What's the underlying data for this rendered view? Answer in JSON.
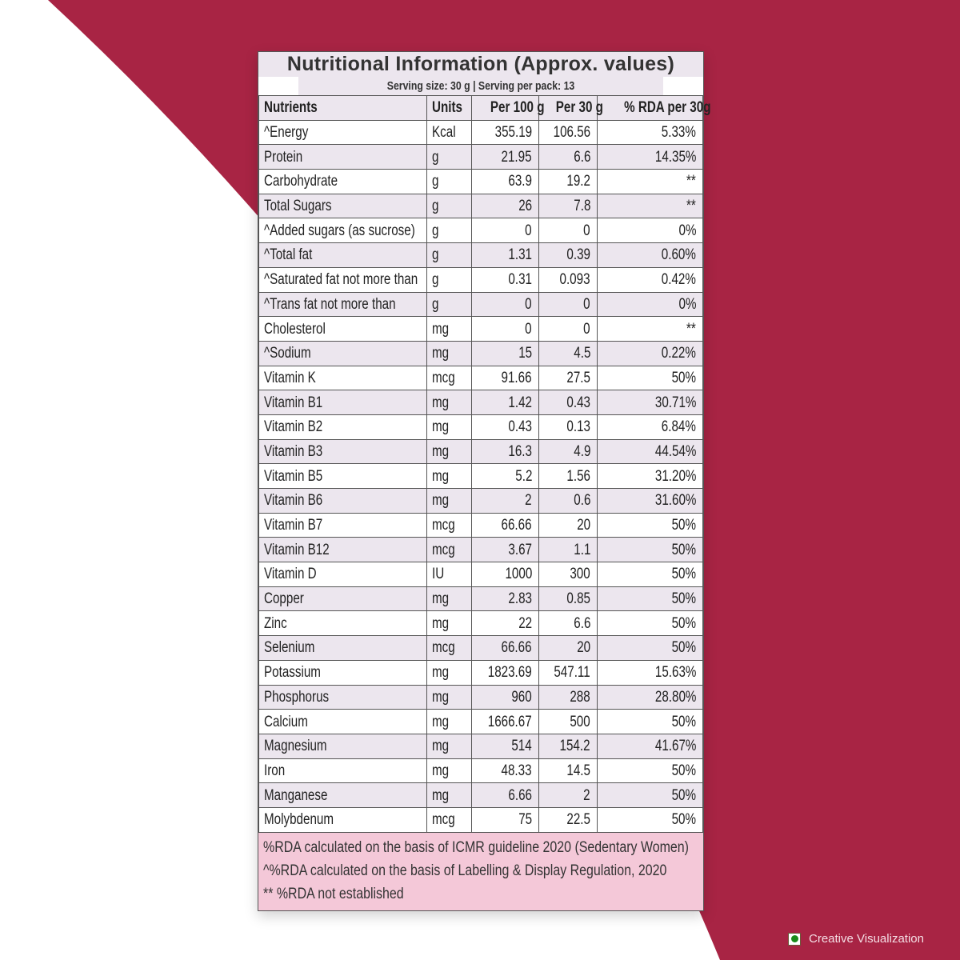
{
  "label": {
    "title": "Nutritional Information (Approx. values)",
    "serving": "Serving size: 30 g   |   Serving per pack: 13",
    "columns": [
      "Nutrients",
      "Units",
      "Per 100 g",
      "Per 30 g",
      "% RDA per 30g"
    ],
    "rows": [
      [
        "^Energy",
        "Kcal",
        "355.19",
        "106.56",
        "5.33%"
      ],
      [
        "Protein",
        "g",
        "21.95",
        "6.6",
        "14.35%"
      ],
      [
        "Carbohydrate",
        "g",
        "63.9",
        "19.2",
        "**"
      ],
      [
        "Total Sugars",
        "g",
        "26",
        "7.8",
        "**"
      ],
      [
        "^Added sugars (as sucrose)",
        "g",
        "0",
        "0",
        "0%"
      ],
      [
        "^Total fat",
        "g",
        "1.31",
        "0.39",
        "0.60%"
      ],
      [
        "^Saturated fat not more than",
        "g",
        "0.31",
        "0.093",
        "0.42%"
      ],
      [
        "^Trans fat not more than",
        "g",
        "0",
        "0",
        "0%"
      ],
      [
        "Cholesterol",
        "mg",
        "0",
        "0",
        "**"
      ],
      [
        "^Sodium",
        "mg",
        "15",
        "4.5",
        "0.22%"
      ],
      [
        "Vitamin K",
        "mcg",
        "91.66",
        "27.5",
        "50%"
      ],
      [
        "Vitamin B1",
        "mg",
        "1.42",
        "0.43",
        "30.71%"
      ],
      [
        "Vitamin B2",
        "mg",
        "0.43",
        "0.13",
        "6.84%"
      ],
      [
        "Vitamin B3",
        "mg",
        "16.3",
        "4.9",
        "44.54%"
      ],
      [
        "Vitamin B5",
        "mg",
        "5.2",
        "1.56",
        "31.20%"
      ],
      [
        "Vitamin B6",
        "mg",
        "2",
        "0.6",
        "31.60%"
      ],
      [
        "Vitamin B7",
        "mcg",
        "66.66",
        "20",
        "50%"
      ],
      [
        "Vitamin B12",
        "mcg",
        "3.67",
        "1.1",
        "50%"
      ],
      [
        "Vitamin D",
        "IU",
        "1000",
        "300",
        "50%"
      ],
      [
        "Copper",
        "mg",
        "2.83",
        "0.85",
        "50%"
      ],
      [
        "Zinc",
        "mg",
        "22",
        "6.6",
        "50%"
      ],
      [
        "Selenium",
        "mcg",
        "66.66",
        "20",
        "50%"
      ],
      [
        "Potassium",
        "mg",
        "1823.69",
        "547.11",
        "15.63%"
      ],
      [
        "Phosphorus",
        "mg",
        "960",
        "288",
        "28.80%"
      ],
      [
        "Calcium",
        "mg",
        "1666.67",
        "500",
        "50%"
      ],
      [
        "Magnesium",
        "mg",
        "514",
        "154.2",
        "41.67%"
      ],
      [
        "Iron",
        "mg",
        "48.33",
        "14.5",
        "50%"
      ],
      [
        "Manganese",
        "mg",
        "6.66",
        "2",
        "50%"
      ],
      [
        "Molybdenum",
        "mcg",
        "75",
        "22.5",
        "50%"
      ]
    ],
    "footnotes": [
      "%RDA calculated on the basis of ICMR guideline 2020 (Sedentary Women)",
      "^%RDA  calculated on the basis of Labelling & Display Regulation, 2020",
      "** %RDA not established"
    ]
  },
  "badge": {
    "text": "Creative Visualization",
    "icon": "veg-symbol-icon"
  },
  "colors": {
    "background": "#a82444",
    "row_alt": "#ece6ee",
    "footer": "#f4c8d8",
    "veg_dot": "#1a8a1a"
  }
}
